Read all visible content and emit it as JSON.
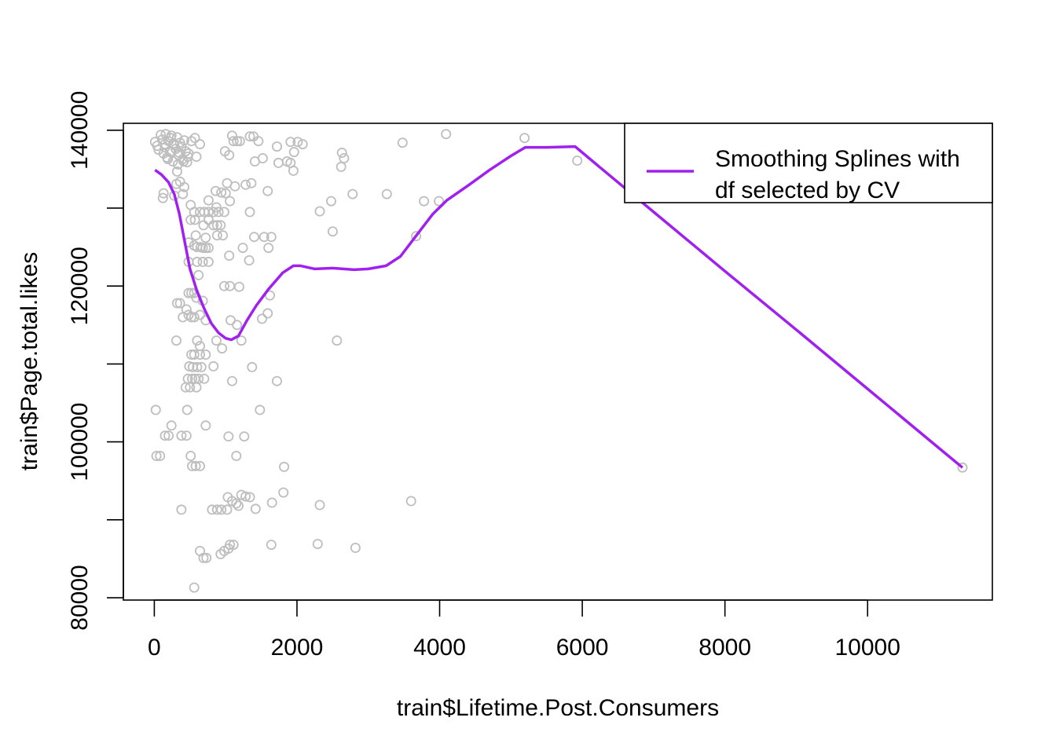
{
  "chart_data": {
    "type": "scatter",
    "xlabel": "train$Lifetime.Post.Consumers",
    "ylabel": "train$Page.total.likes",
    "xlim": [
      -434,
      11749
    ],
    "ylim": [
      79700,
      140885
    ],
    "x_ticks": [
      0,
      2000,
      4000,
      6000,
      8000,
      10000
    ],
    "y_ticks": [
      80000,
      100000,
      120000,
      140000
    ],
    "x_tick_labels": [
      "0",
      "2000",
      "4000",
      "6000",
      "8000",
      "10000"
    ],
    "y_tick_labels": [
      "80000",
      "100000",
      "120000",
      "140000"
    ],
    "grid": false,
    "point_color": "#bebebe",
    "line_color": "#a020f0",
    "legend": {
      "position": "top-right",
      "lines": [
        "Smoothing Splines with",
        "df selected by CV"
      ]
    },
    "series": [
      {
        "kind": "points",
        "values": [
          [
            10,
            138500
          ],
          [
            40,
            138000
          ],
          [
            60,
            137500
          ],
          [
            90,
            139400
          ],
          [
            110,
            138800
          ],
          [
            130,
            137000
          ],
          [
            150,
            138200
          ],
          [
            160,
            139500
          ],
          [
            180,
            136500
          ],
          [
            200,
            138600
          ],
          [
            220,
            137200
          ],
          [
            240,
            139300
          ],
          [
            260,
            136000
          ],
          [
            280,
            138100
          ],
          [
            300,
            137600
          ],
          [
            320,
            139100
          ],
          [
            340,
            136800
          ],
          [
            360,
            138400
          ],
          [
            380,
            137900
          ],
          [
            400,
            136300
          ],
          [
            420,
            138700
          ],
          [
            440,
            137300
          ],
          [
            460,
            135900
          ],
          [
            480,
            137000
          ],
          [
            230,
            139000
          ],
          [
            270,
            138300
          ],
          [
            350,
            137100
          ],
          [
            150,
            137800
          ],
          [
            190,
            136300
          ],
          [
            330,
            135600
          ],
          [
            410,
            136000
          ],
          [
            470,
            136600
          ],
          [
            520,
            138600
          ],
          [
            570,
            139000
          ],
          [
            640,
            138200
          ],
          [
            590,
            136600
          ],
          [
            320,
            134700
          ],
          [
            360,
            133400
          ],
          [
            420,
            132700
          ],
          [
            310,
            133100
          ],
          [
            400,
            131800
          ],
          [
            280,
            131600
          ],
          [
            130,
            131900
          ],
          [
            120,
            131300
          ],
          [
            510,
            130400
          ],
          [
            560,
            129500
          ],
          [
            640,
            129500
          ],
          [
            700,
            129500
          ],
          [
            760,
            129500
          ],
          [
            830,
            129500
          ],
          [
            900,
            129500
          ],
          [
            980,
            129500
          ],
          [
            510,
            128500
          ],
          [
            570,
            128500
          ],
          [
            690,
            127800
          ],
          [
            760,
            128500
          ],
          [
            830,
            127800
          ],
          [
            880,
            127800
          ],
          [
            930,
            127800
          ],
          [
            580,
            126500
          ],
          [
            720,
            126200
          ],
          [
            880,
            126500
          ],
          [
            960,
            126500
          ],
          [
            480,
            125600
          ],
          [
            560,
            125200
          ],
          [
            600,
            125000
          ],
          [
            650,
            125000
          ],
          [
            680,
            124900
          ],
          [
            720,
            124900
          ],
          [
            760,
            124900
          ],
          [
            480,
            123100
          ],
          [
            600,
            123100
          ],
          [
            680,
            123100
          ],
          [
            760,
            123100
          ],
          [
            620,
            121400
          ],
          [
            480,
            119100
          ],
          [
            520,
            119100
          ],
          [
            560,
            119100
          ],
          [
            590,
            118500
          ],
          [
            680,
            118100
          ],
          [
            320,
            117800
          ],
          [
            360,
            117800
          ],
          [
            450,
            117000
          ],
          [
            480,
            116300
          ],
          [
            400,
            116000
          ],
          [
            520,
            116000
          ],
          [
            560,
            116000
          ],
          [
            640,
            116300
          ],
          [
            720,
            115600
          ],
          [
            310,
            113000
          ],
          [
            600,
            113000
          ],
          [
            640,
            112300
          ],
          [
            520,
            111200
          ],
          [
            560,
            111200
          ],
          [
            640,
            111200
          ],
          [
            720,
            111200
          ],
          [
            490,
            109700
          ],
          [
            540,
            109600
          ],
          [
            600,
            109600
          ],
          [
            660,
            109600
          ],
          [
            830,
            109700
          ],
          [
            470,
            108100
          ],
          [
            530,
            108100
          ],
          [
            570,
            108100
          ],
          [
            620,
            108100
          ],
          [
            700,
            108100
          ],
          [
            440,
            107000
          ],
          [
            500,
            107000
          ],
          [
            590,
            107000
          ],
          [
            20,
            104100
          ],
          [
            460,
            104100
          ],
          [
            720,
            102100
          ],
          [
            240,
            102100
          ],
          [
            150,
            100800
          ],
          [
            200,
            100800
          ],
          [
            380,
            100800
          ],
          [
            450,
            100800
          ],
          [
            30,
            98200
          ],
          [
            80,
            98200
          ],
          [
            510,
            98200
          ],
          [
            530,
            96900
          ],
          [
            580,
            96900
          ],
          [
            640,
            96900
          ],
          [
            380,
            91300
          ],
          [
            810,
            91300
          ],
          [
            880,
            91300
          ],
          [
            940,
            91300
          ],
          [
            1020,
            91300
          ],
          [
            640,
            86000
          ],
          [
            690,
            85100
          ],
          [
            730,
            85100
          ],
          [
            560,
            81300
          ],
          [
            990,
            137300
          ],
          [
            1050,
            136800
          ],
          [
            1090,
            139300
          ],
          [
            1110,
            138600
          ],
          [
            1160,
            138600
          ],
          [
            1200,
            138600
          ],
          [
            1340,
            139200
          ],
          [
            1390,
            139200
          ],
          [
            1460,
            138600
          ],
          [
            1410,
            136000
          ],
          [
            1520,
            136400
          ],
          [
            1720,
            137900
          ],
          [
            1910,
            138500
          ],
          [
            1960,
            137200
          ],
          [
            1740,
            135800
          ],
          [
            1860,
            136000
          ],
          [
            1910,
            135800
          ],
          [
            1950,
            134800
          ],
          [
            2080,
            138200
          ],
          [
            1020,
            133200
          ],
          [
            1130,
            132800
          ],
          [
            1280,
            133000
          ],
          [
            1360,
            133200
          ],
          [
            1590,
            132200
          ],
          [
            860,
            132200
          ],
          [
            940,
            132000
          ],
          [
            760,
            131000
          ],
          [
            1000,
            131900
          ],
          [
            1060,
            130900
          ],
          [
            870,
            130100
          ],
          [
            1340,
            129500
          ],
          [
            1400,
            126300
          ],
          [
            1540,
            126300
          ],
          [
            1640,
            126300
          ],
          [
            1600,
            124900
          ],
          [
            1240,
            124900
          ],
          [
            1050,
            123900
          ],
          [
            980,
            120000
          ],
          [
            1060,
            120000
          ],
          [
            1190,
            119900
          ],
          [
            1330,
            123300
          ],
          [
            1620,
            118800
          ],
          [
            1590,
            116500
          ],
          [
            1510,
            115800
          ],
          [
            1070,
            115600
          ],
          [
            1160,
            115000
          ],
          [
            1220,
            113000
          ],
          [
            870,
            113000
          ],
          [
            1370,
            109600
          ],
          [
            950,
            112000
          ],
          [
            1090,
            107800
          ],
          [
            1720,
            107800
          ],
          [
            1480,
            104100
          ],
          [
            1040,
            100700
          ],
          [
            1260,
            100700
          ],
          [
            1150,
            98200
          ],
          [
            1820,
            96800
          ],
          [
            1810,
            93500
          ],
          [
            1650,
            92200
          ],
          [
            1420,
            91400
          ],
          [
            1220,
            93200
          ],
          [
            1280,
            93000
          ],
          [
            1340,
            92900
          ],
          [
            1030,
            92900
          ],
          [
            1090,
            92400
          ],
          [
            1150,
            92100
          ],
          [
            1180,
            91800
          ],
          [
            1060,
            86800
          ],
          [
            1110,
            86800
          ],
          [
            1040,
            86300
          ],
          [
            980,
            86000
          ],
          [
            930,
            85600
          ],
          [
            1640,
            86800
          ],
          [
            2010,
            138500
          ],
          [
            2480,
            130900
          ],
          [
            2630,
            137100
          ],
          [
            2660,
            136400
          ],
          [
            2620,
            135300
          ],
          [
            2320,
            129600
          ],
          [
            2500,
            127000
          ],
          [
            2780,
            131800
          ],
          [
            3260,
            131800
          ],
          [
            3780,
            130900
          ],
          [
            3990,
            130900
          ],
          [
            3670,
            126400
          ],
          [
            2560,
            113000
          ],
          [
            3600,
            92400
          ],
          [
            2320,
            91900
          ],
          [
            2290,
            86900
          ],
          [
            2820,
            86400
          ],
          [
            3480,
            138400
          ],
          [
            4090,
            139500
          ],
          [
            5190,
            139000
          ],
          [
            5930,
            136100
          ],
          [
            11330,
            96700
          ]
        ]
      },
      {
        "kind": "line",
        "name": "Smoothing Splines with df selected by CV",
        "values": [
          [
            10,
            134900
          ],
          [
            100,
            134300
          ],
          [
            200,
            133300
          ],
          [
            280,
            131800
          ],
          [
            350,
            129300
          ],
          [
            420,
            126000
          ],
          [
            500,
            122200
          ],
          [
            600,
            119300
          ],
          [
            700,
            117100
          ],
          [
            800,
            115200
          ],
          [
            900,
            114000
          ],
          [
            1000,
            113300
          ],
          [
            1080,
            113100
          ],
          [
            1180,
            113600
          ],
          [
            1300,
            115600
          ],
          [
            1430,
            117500
          ],
          [
            1600,
            119600
          ],
          [
            1800,
            121700
          ],
          [
            1950,
            122600
          ],
          [
            2050,
            122600
          ],
          [
            2250,
            122200
          ],
          [
            2500,
            122300
          ],
          [
            2800,
            122100
          ],
          [
            3000,
            122200
          ],
          [
            3250,
            122600
          ],
          [
            3450,
            123800
          ],
          [
            3700,
            126800
          ],
          [
            3900,
            129200
          ],
          [
            4100,
            131000
          ],
          [
            4400,
            132900
          ],
          [
            4700,
            134900
          ],
          [
            5000,
            136700
          ],
          [
            5200,
            137800
          ],
          [
            5500,
            137800
          ],
          [
            5900,
            137900
          ],
          [
            6200,
            135600
          ],
          [
            7000,
            129500
          ],
          [
            8000,
            121900
          ],
          [
            9000,
            114400
          ],
          [
            10000,
            106800
          ],
          [
            11000,
            99200
          ],
          [
            11330,
            96700
          ]
        ]
      }
    ]
  }
}
